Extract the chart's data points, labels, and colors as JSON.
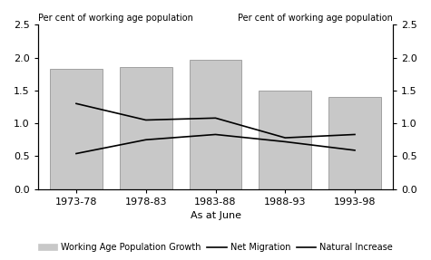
{
  "categories": [
    "1973-78",
    "1978-83",
    "1983-88",
    "1988-93",
    "1993-98"
  ],
  "bar_values": [
    1.83,
    1.85,
    1.97,
    1.5,
    1.4
  ],
  "net_migration": [
    1.3,
    1.05,
    1.08,
    0.78,
    0.83
  ],
  "natural_increase": [
    0.54,
    0.75,
    0.83,
    0.72,
    0.59
  ],
  "bar_color": "#c8c8c8",
  "bar_edgecolor": "#888888",
  "line1_color": "#000000",
  "line2_color": "#000000",
  "ylim": [
    0.0,
    2.5
  ],
  "yticks": [
    0.0,
    0.5,
    1.0,
    1.5,
    2.0,
    2.5
  ],
  "ylabel_left": "Per cent of working age population",
  "ylabel_right": "Per cent of working age population",
  "xlabel": "As at June",
  "legend_bar": "Working Age Population Growth",
  "legend_line1": "Net Migration",
  "legend_line2": "Natural Increase",
  "background_color": "#ffffff",
  "bar_width": 0.75,
  "figsize": [
    4.75,
    2.87
  ],
  "dpi": 100
}
